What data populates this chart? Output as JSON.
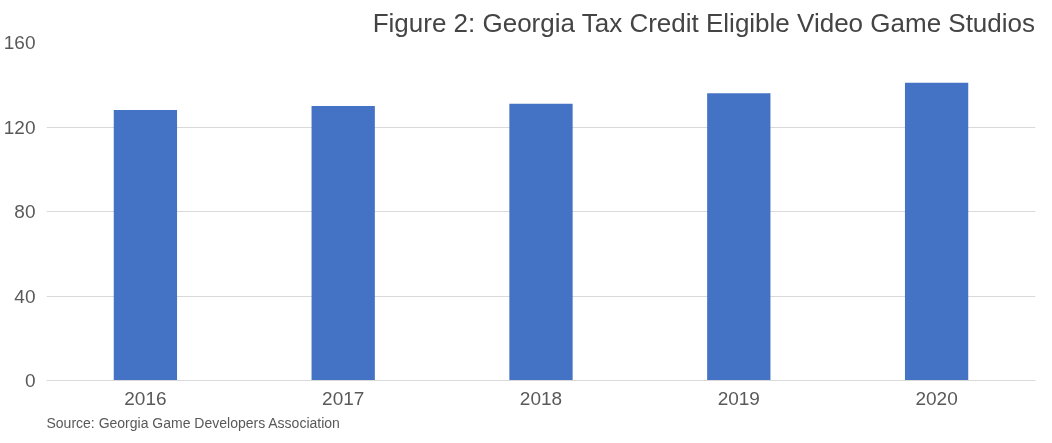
{
  "chart_data": {
    "type": "bar",
    "title": "Figure 2: Georgia Tax Credit Eligible Video Game Studios",
    "categories": [
      "2016",
      "2017",
      "2018",
      "2019",
      "2020"
    ],
    "values": [
      128,
      130,
      131,
      136,
      141
    ],
    "color": "#4472c4",
    "ylim": [
      0,
      160
    ],
    "yticks": [
      0,
      40,
      80,
      120,
      160
    ],
    "grid": "y",
    "annotations": [
      "Source: Georgia Game Developers Association"
    ]
  }
}
